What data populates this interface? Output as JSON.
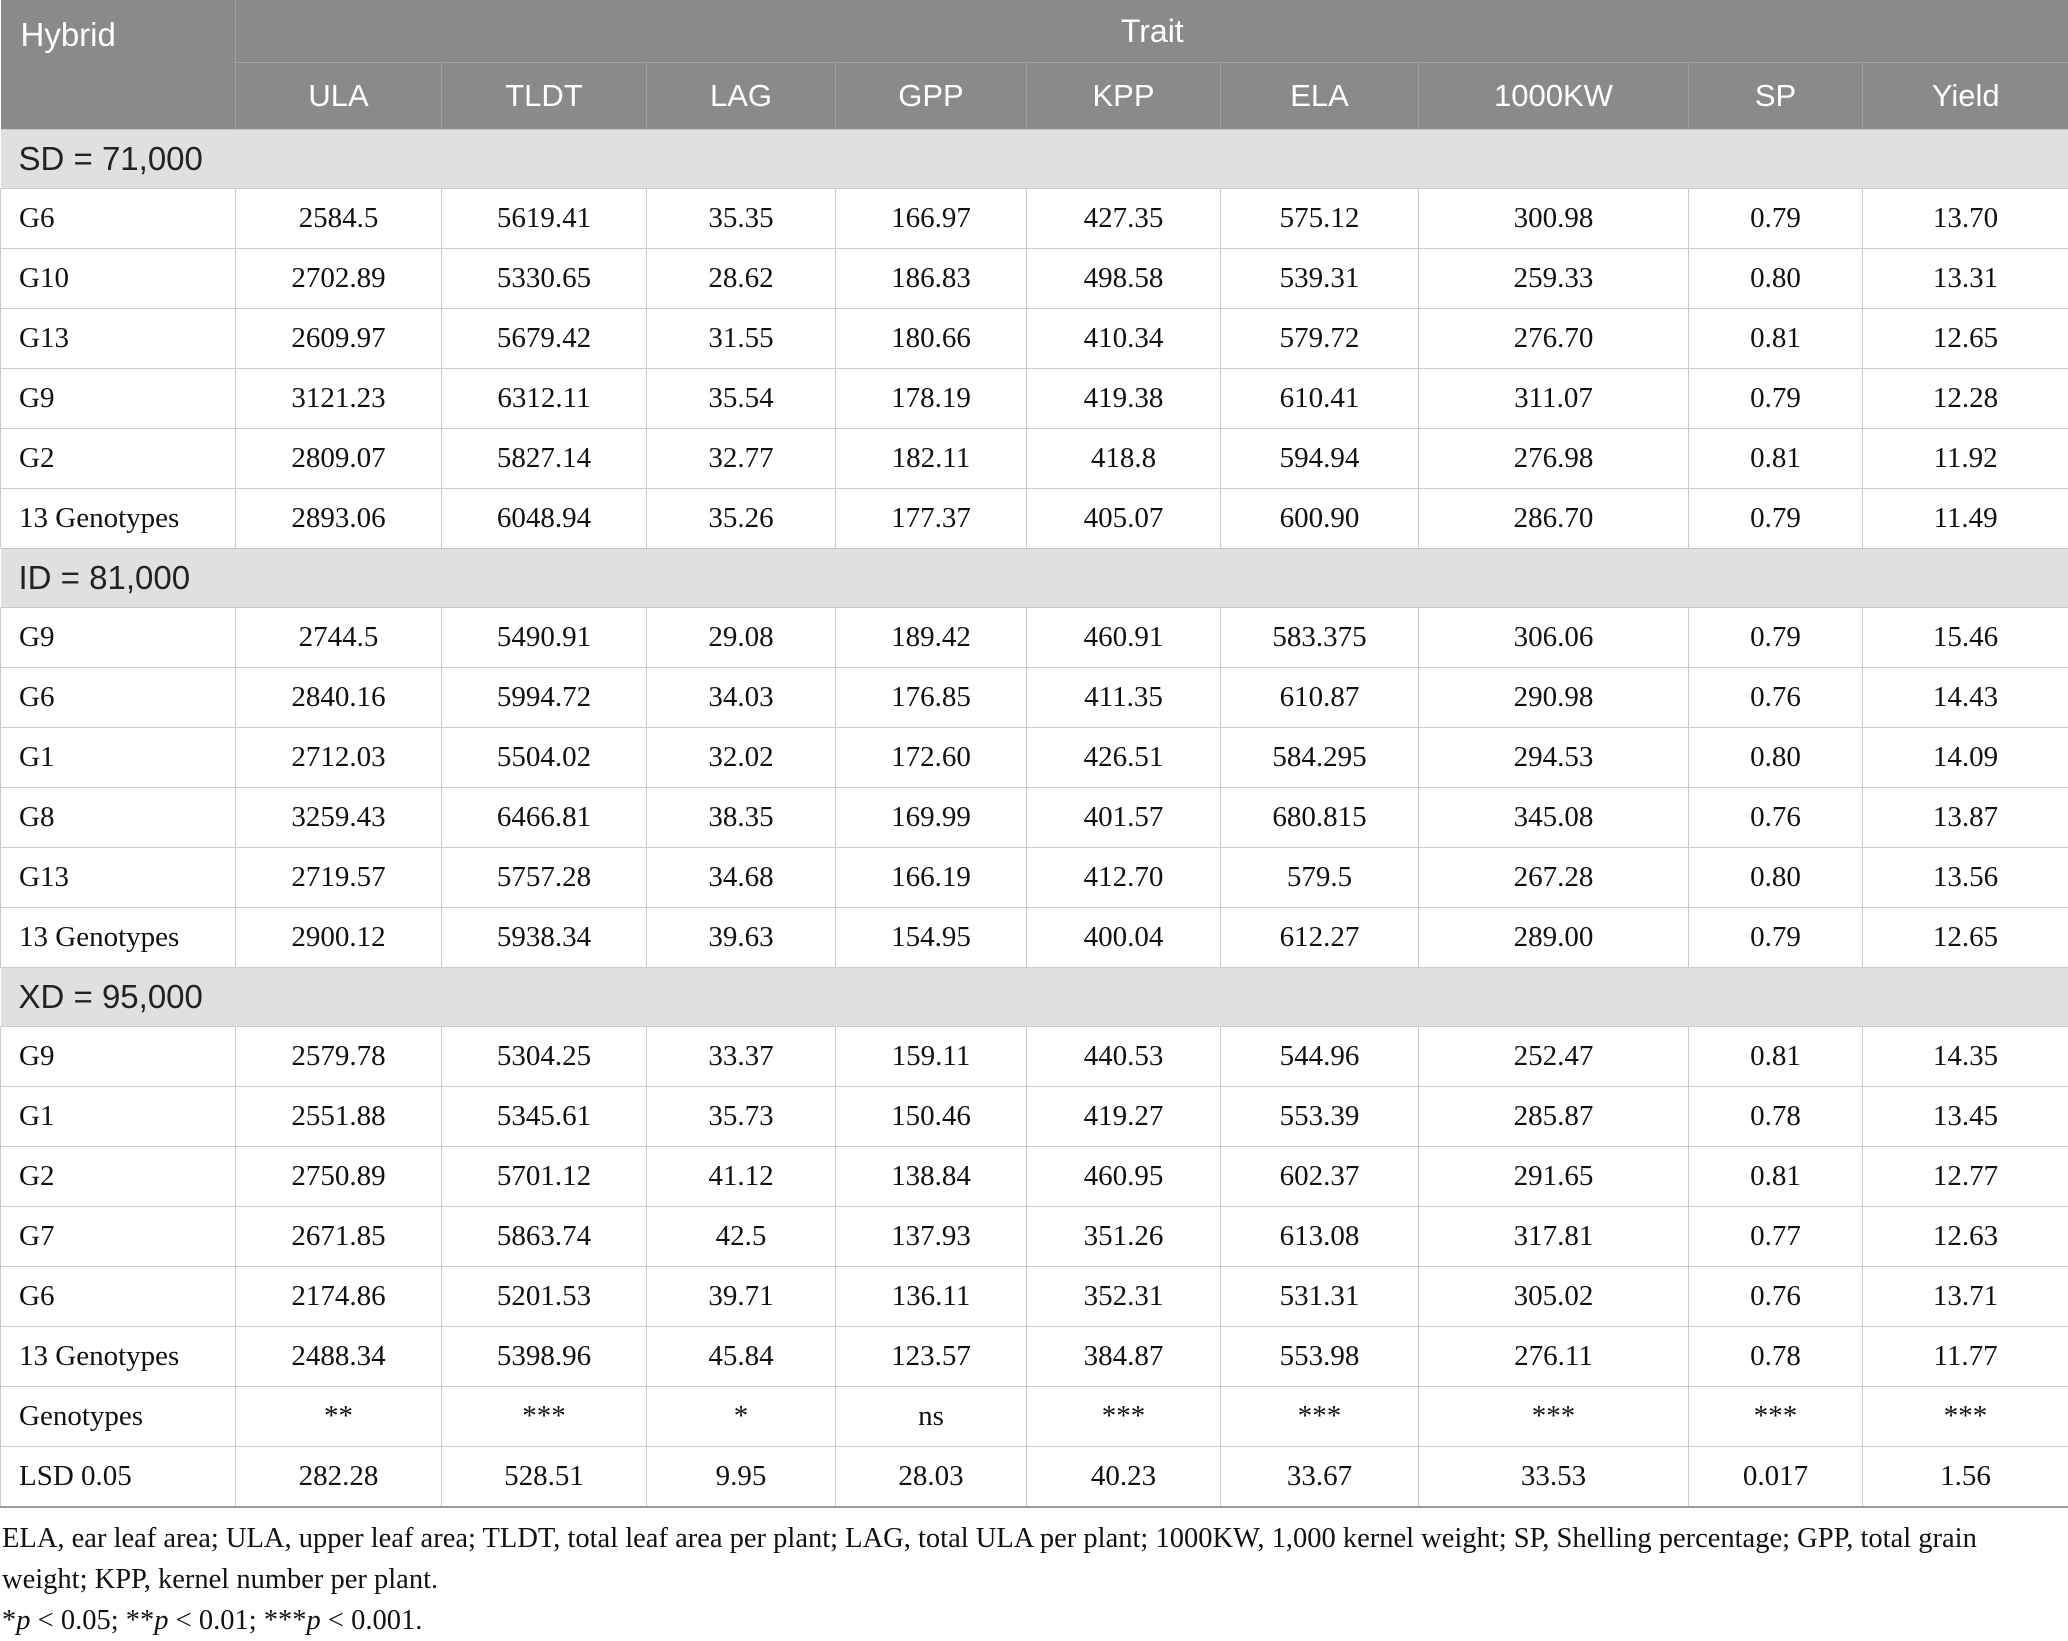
{
  "colors": {
    "header_bg": "#8a8a8a",
    "header_text": "#ffffff",
    "section_bg": "#e0e0e0",
    "cell_border": "#cbcbcb"
  },
  "table": {
    "corner_header": "Hybrid",
    "trait_header": "Trait",
    "columns": [
      "ULA",
      "TLDT",
      "LAG",
      "GPP",
      "KPP",
      "ELA",
      "1000KW",
      "SP",
      "Yield"
    ],
    "sections": [
      {
        "label": "SD = 71,000",
        "rows": [
          {
            "hybrid": "G6",
            "values": [
              "2584.5",
              "5619.41",
              "35.35",
              "166.97",
              "427.35",
              "575.12",
              "300.98",
              "0.79",
              "13.70"
            ]
          },
          {
            "hybrid": "G10",
            "values": [
              "2702.89",
              "5330.65",
              "28.62",
              "186.83",
              "498.58",
              "539.31",
              "259.33",
              "0.80",
              "13.31"
            ]
          },
          {
            "hybrid": "G13",
            "values": [
              "2609.97",
              "5679.42",
              "31.55",
              "180.66",
              "410.34",
              "579.72",
              "276.70",
              "0.81",
              "12.65"
            ]
          },
          {
            "hybrid": "G9",
            "values": [
              "3121.23",
              "6312.11",
              "35.54",
              "178.19",
              "419.38",
              "610.41",
              "311.07",
              "0.79",
              "12.28"
            ]
          },
          {
            "hybrid": "G2",
            "values": [
              "2809.07",
              "5827.14",
              "32.77",
              "182.11",
              "418.8",
              "594.94",
              "276.98",
              "0.81",
              "11.92"
            ]
          },
          {
            "hybrid": "13 Genotypes",
            "values": [
              "2893.06",
              "6048.94",
              "35.26",
              "177.37",
              "405.07",
              "600.90",
              "286.70",
              "0.79",
              "11.49"
            ]
          }
        ]
      },
      {
        "label": "ID = 81,000",
        "rows": [
          {
            "hybrid": "G9",
            "values": [
              "2744.5",
              "5490.91",
              "29.08",
              "189.42",
              "460.91",
              "583.375",
              "306.06",
              "0.79",
              "15.46"
            ]
          },
          {
            "hybrid": "G6",
            "values": [
              "2840.16",
              "5994.72",
              "34.03",
              "176.85",
              "411.35",
              "610.87",
              "290.98",
              "0.76",
              "14.43"
            ]
          },
          {
            "hybrid": "G1",
            "values": [
              "2712.03",
              "5504.02",
              "32.02",
              "172.60",
              "426.51",
              "584.295",
              "294.53",
              "0.80",
              "14.09"
            ]
          },
          {
            "hybrid": "G8",
            "values": [
              "3259.43",
              "6466.81",
              "38.35",
              "169.99",
              "401.57",
              "680.815",
              "345.08",
              "0.76",
              "13.87"
            ]
          },
          {
            "hybrid": "G13",
            "values": [
              "2719.57",
              "5757.28",
              "34.68",
              "166.19",
              "412.70",
              "579.5",
              "267.28",
              "0.80",
              "13.56"
            ]
          },
          {
            "hybrid": "13 Genotypes",
            "values": [
              "2900.12",
              "5938.34",
              "39.63",
              "154.95",
              "400.04",
              "612.27",
              "289.00",
              "0.79",
              "12.65"
            ]
          }
        ]
      },
      {
        "label": "XD = 95,000",
        "rows": [
          {
            "hybrid": "G9",
            "values": [
              "2579.78",
              "5304.25",
              "33.37",
              "159.11",
              "440.53",
              "544.96",
              "252.47",
              "0.81",
              "14.35"
            ]
          },
          {
            "hybrid": "G1",
            "values": [
              "2551.88",
              "5345.61",
              "35.73",
              "150.46",
              "419.27",
              "553.39",
              "285.87",
              "0.78",
              "13.45"
            ]
          },
          {
            "hybrid": "G2",
            "values": [
              "2750.89",
              "5701.12",
              "41.12",
              "138.84",
              "460.95",
              "602.37",
              "291.65",
              "0.81",
              "12.77"
            ]
          },
          {
            "hybrid": "G7",
            "values": [
              "2671.85",
              "5863.74",
              "42.5",
              "137.93",
              "351.26",
              "613.08",
              "317.81",
              "0.77",
              "12.63"
            ]
          },
          {
            "hybrid": "G6",
            "values": [
              "2174.86",
              "5201.53",
              "39.71",
              "136.11",
              "352.31",
              "531.31",
              "305.02",
              "0.76",
              "13.71"
            ]
          },
          {
            "hybrid": "13 Genotypes",
            "values": [
              "2488.34",
              "5398.96",
              "45.84",
              "123.57",
              "384.87",
              "553.98",
              "276.11",
              "0.78",
              "11.77"
            ]
          }
        ]
      }
    ],
    "summary_rows": [
      {
        "label": "Genotypes",
        "values": [
          "**",
          "***",
          "*",
          "ns",
          "***",
          "***",
          "***",
          "***",
          "***"
        ]
      },
      {
        "label": "LSD 0.05",
        "values": [
          "282.28",
          "528.51",
          "9.95",
          "28.03",
          "40.23",
          "33.67",
          "33.53",
          "0.017",
          "1.56"
        ]
      }
    ]
  },
  "footnotes": {
    "abbreviations": "ELA, ear leaf area; ULA, upper leaf area; TLDT, total leaf area per plant; LAG, total ULA per plant; 1000KW, 1,000 kernel weight; SP, Shelling percentage; GPP, total grain weight; KPP, kernel number per plant.",
    "significance": [
      {
        "text": "*"
      },
      {
        "text": "p",
        "italic": true
      },
      {
        "text": " < 0.05; **"
      },
      {
        "text": "p",
        "italic": true
      },
      {
        "text": " < 0.01; ***"
      },
      {
        "text": "p",
        "italic": true
      },
      {
        "text": " < 0.001."
      }
    ]
  }
}
